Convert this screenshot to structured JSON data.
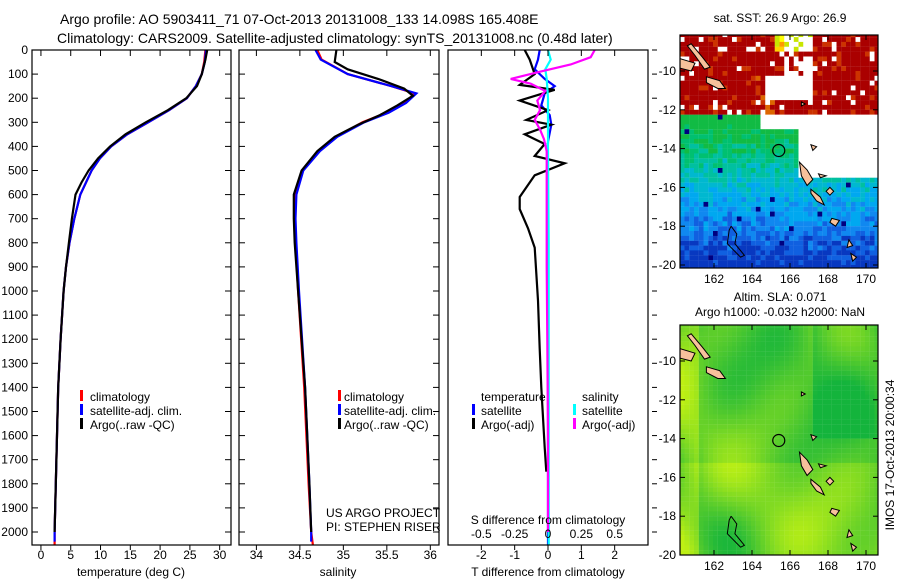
{
  "title": {
    "line1": "Argo profile: AO 5903411_71 07-Oct-2013 20131008_133 14.098S 165.408E",
    "line2": "Climatology: CARS2009. Satellite-adjusted climatology: synTS_20131008.nc (0.48d later)"
  },
  "colors": {
    "climatology": "#ff0000",
    "satellite": "#0000ff",
    "argo": "#000000",
    "s_satellite": "#00ffff",
    "s_argo": "#ff00ff",
    "land": "#f7c19b"
  },
  "chart_data": [
    {
      "type": "line",
      "name": "temperature-profile",
      "xlabel": "temperature (deg C)",
      "ylabel": "",
      "xlim": [
        -1.5,
        31.9
      ],
      "ylim": [
        0,
        2054
      ],
      "y_reversed": true,
      "xticks": [
        "0",
        "5",
        "10",
        "15",
        "20",
        "25",
        "30"
      ],
      "yticks": [
        "0",
        "100",
        "200",
        "300",
        "400",
        "500",
        "600",
        "700",
        "800",
        "900",
        "1000",
        "1100",
        "1200",
        "1300",
        "1400",
        "1500",
        "1600",
        "1700",
        "1800",
        "1900",
        "2000"
      ],
      "legend": [
        "climatology",
        "satellite-adj. clim.",
        "Argo(..raw -QC)"
      ],
      "series": [
        {
          "name": "climatology",
          "color": "#ff0000",
          "depth": [
            0,
            50,
            100,
            150,
            200,
            250,
            300,
            350,
            400,
            450,
            500,
            600,
            700,
            800,
            900,
            1000,
            1200,
            1400,
            1600,
            1800,
            2000,
            2054
          ],
          "values": [
            27.6,
            27.4,
            27.0,
            26.0,
            24.5,
            21.5,
            18.0,
            14.5,
            11.8,
            9.9,
            8.5,
            6.6,
            5.6,
            4.8,
            4.2,
            3.8,
            3.3,
            2.9,
            2.7,
            2.5,
            2.3,
            2.3
          ]
        },
        {
          "name": "satellite-adj. clim.",
          "color": "#0000ff",
          "depth": [
            0,
            50,
            100,
            150,
            200,
            250,
            300,
            350,
            400,
            450,
            500,
            600,
            700,
            800,
            900,
            1000,
            1200,
            1400,
            1600,
            1800,
            2000,
            2040
          ],
          "values": [
            27.7,
            27.5,
            27.0,
            26.0,
            24.5,
            21.5,
            18.0,
            14.5,
            11.8,
            9.9,
            8.5,
            6.6,
            5.6,
            4.8,
            4.2,
            3.8,
            3.3,
            2.9,
            2.7,
            2.5,
            2.3,
            2.3
          ]
        },
        {
          "name": "Argo(..raw -QC)",
          "color": "#000000",
          "depth": [
            0,
            40,
            100,
            150,
            200,
            250,
            300,
            350,
            400,
            450,
            500,
            550,
            600,
            700,
            800,
            900,
            1000,
            1200,
            1400,
            1600,
            1800,
            2000
          ],
          "values": [
            27.9,
            27.6,
            27.0,
            26.2,
            24.4,
            21.3,
            17.6,
            14.2,
            11.6,
            9.6,
            8.0,
            6.8,
            5.8,
            5.2,
            4.7,
            4.2,
            3.8,
            3.3,
            2.9,
            2.7,
            2.5,
            2.3
          ]
        }
      ]
    },
    {
      "type": "line",
      "name": "salinity-profile",
      "xlabel": "salinity",
      "xlim": [
        33.8,
        36.1
      ],
      "ylim": [
        0,
        2054
      ],
      "y_reversed": true,
      "xticks": [
        "34",
        "34.5",
        "35",
        "35.5",
        "36"
      ],
      "legend": [
        "climatology",
        "satellite-adj. clim.",
        "Argo(..raw -QC)"
      ],
      "annotations": [
        "US ARGO PROJECT",
        "PI: STEPHEN RISER"
      ],
      "series": [
        {
          "name": "climatology",
          "color": "#ff0000",
          "depth": [
            0,
            40,
            100,
            150,
            180,
            220,
            260,
            300,
            360,
            420,
            500,
            600,
            700,
            800,
            1000,
            1400,
            1800,
            2000,
            2054
          ],
          "values": [
            34.7,
            34.75,
            35.05,
            35.55,
            35.82,
            35.7,
            35.5,
            35.22,
            34.92,
            34.72,
            34.53,
            34.45,
            34.44,
            34.45,
            34.48,
            34.55,
            34.6,
            34.63,
            34.65
          ]
        },
        {
          "name": "satellite-adj. clim.",
          "color": "#0000ff",
          "depth": [
            0,
            40,
            100,
            150,
            180,
            220,
            260,
            300,
            360,
            420,
            500,
            600,
            700,
            800,
            1000,
            1400,
            1800,
            2000,
            2040
          ],
          "values": [
            34.68,
            34.74,
            35.05,
            35.55,
            35.84,
            35.72,
            35.52,
            35.24,
            34.93,
            34.73,
            34.54,
            34.46,
            34.45,
            34.46,
            34.49,
            34.56,
            34.61,
            34.63,
            34.63
          ]
        },
        {
          "name": "Argo(..raw -QC)",
          "color": "#000000",
          "depth": [
            0,
            50,
            80,
            120,
            160,
            190,
            230,
            270,
            310,
            360,
            420,
            500,
            600,
            700,
            800,
            1000,
            1400,
            1800,
            2000
          ],
          "values": [
            34.92,
            34.9,
            35.05,
            35.4,
            35.7,
            35.8,
            35.62,
            35.42,
            35.17,
            34.9,
            34.7,
            34.52,
            34.43,
            34.43,
            34.44,
            34.48,
            34.56,
            34.61,
            34.63
          ]
        }
      ]
    },
    {
      "type": "line",
      "name": "difference-profile",
      "xlabel": "T difference from climatology",
      "xlabel2": "S difference from climatology",
      "xlim": [
        -3,
        3
      ],
      "xlim2": [
        -0.75,
        0.75
      ],
      "ylim": [
        0,
        2054
      ],
      "y_reversed": true,
      "xticks": [
        "-2",
        "-1",
        "0",
        "1",
        "2"
      ],
      "xticks2": [
        "-0.5",
        "-0.25",
        "0",
        "0.25",
        "0.5"
      ],
      "legend": {
        "temperature_heading": "temperature",
        "salinity_heading": "salinity",
        "t_satellite": "satellite",
        "t_argo": "Argo(-adj)",
        "s_satellite": "satellite",
        "s_argo": "Argo(-adj)"
      },
      "series": [
        {
          "name": "T satellite",
          "axis": "T",
          "color": "#0000ff",
          "depth": [
            0,
            40,
            80,
            120,
            150,
            180,
            230,
            270,
            310,
            380,
            500,
            700,
            1000,
            1500,
            2054
          ],
          "values": [
            -0.25,
            -0.3,
            -0.4,
            -0.1,
            0.2,
            -0.1,
            -0.2,
            0.05,
            0.1,
            0.0,
            -0.03,
            0.0,
            0.0,
            0.0,
            0.0
          ]
        },
        {
          "name": "T Argo(-adj)",
          "axis": "T",
          "color": "#000000",
          "depth": [
            0,
            40,
            100,
            145,
            165,
            210,
            250,
            290,
            310,
            350,
            390,
            440,
            470,
            520,
            580,
            610,
            660,
            740,
            820,
            1040,
            1240,
            1400,
            1650,
            1750
          ],
          "values": [
            -0.7,
            -0.55,
            -0.4,
            -0.85,
            0.2,
            -0.85,
            0.0,
            -0.65,
            0.1,
            -0.7,
            -0.1,
            -0.4,
            0.5,
            -0.4,
            -0.7,
            -0.85,
            -0.85,
            -0.6,
            -0.4,
            -0.3,
            -0.25,
            -0.2,
            -0.1,
            -0.05
          ]
        },
        {
          "name": "S satellite",
          "axis": "S",
          "color": "#00ffff",
          "depth": [
            0,
            40,
            80,
            120,
            200,
            400,
            800,
            1200,
            2054
          ],
          "values": [
            0.0,
            0.02,
            -0.02,
            -0.01,
            0.0,
            0.0,
            0.005,
            0.005,
            0.005
          ]
        },
        {
          "name": "S Argo(-adj)",
          "axis": "S",
          "color": "#ff00ff",
          "depth": [
            0,
            30,
            60,
            90,
            120,
            140,
            170,
            210,
            250,
            290,
            330,
            370,
            420,
            600,
            900,
            1200,
            1600,
            2000
          ],
          "values": [
            0.35,
            0.32,
            0.17,
            -0.06,
            -0.28,
            -0.13,
            -0.02,
            -0.08,
            -0.06,
            -0.1,
            -0.06,
            -0.03,
            -0.01,
            -0.01,
            -0.01,
            -0.005,
            0.0,
            0.0
          ]
        }
      ]
    }
  ],
  "maps": {
    "sst": {
      "title": "sat. SST: 26.9 Argo: 26.9",
      "lon_ticks": [
        "162",
        "164",
        "166",
        "168",
        "170"
      ],
      "lat_ticks": [
        "-10",
        "-12",
        "-14",
        "-16",
        "-18",
        "-20"
      ],
      "float_lon": 165.408,
      "float_lat": -14.098
    },
    "sla": {
      "title1": "Altim. SLA: 0.071",
      "title2": "Argo h1000: -0.032 h2000: NaN",
      "lon_ticks": [
        "162",
        "164",
        "166",
        "168",
        "170"
      ],
      "lat_ticks": [
        "-10",
        "-12",
        "-14",
        "-16",
        "-18",
        "-20"
      ],
      "float_lon": 165.408,
      "float_lat": -14.098
    }
  },
  "credit": "IMOS 17-Oct-2013 20:00:34"
}
